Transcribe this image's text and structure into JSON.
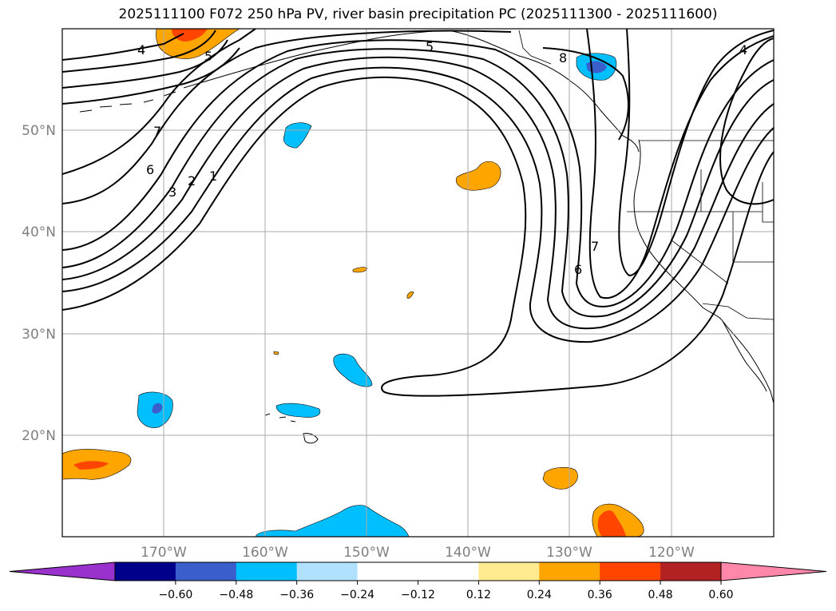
{
  "title": "2025111100 F072 250 hPa PV, river basin precipitation PC (2025111300 - 2025111600)",
  "map": {
    "lat_labels": [
      "50°N",
      "40°N",
      "30°N",
      "20°N"
    ],
    "lon_labels": [
      "170°W",
      "160°W",
      "150°W",
      "140°W",
      "130°W",
      "120°W"
    ],
    "contour_labels": [
      "4",
      "5",
      "5",
      "8",
      "4",
      "7",
      "6",
      "3",
      "2",
      "1",
      "6",
      "7"
    ]
  },
  "colorbar": {
    "ticks": [
      "−0.60",
      "−0.48",
      "−0.36",
      "−0.24",
      "−0.12",
      "0.12",
      "0.24",
      "0.36",
      "0.48",
      "0.60"
    ],
    "under_color": "#9932cc",
    "over_color": "#ff88aa",
    "colors": [
      "#00008b",
      "#3a5fcd",
      "#00bfff",
      "#b0e2ff",
      "#ffffff",
      "#ffffff",
      "#ffea8f",
      "#ffa500",
      "#ff4500",
      "#b22222"
    ]
  }
}
